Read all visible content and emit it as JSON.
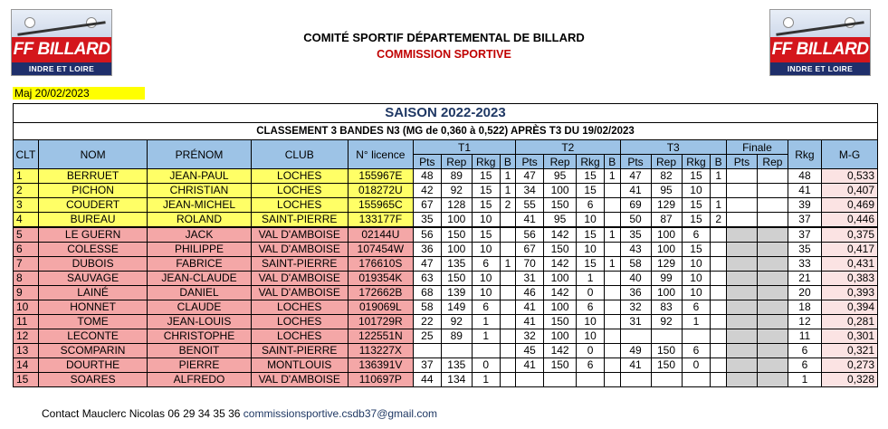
{
  "logo": {
    "brand": "FF BILLARD",
    "sub": "INDRE ET LOIRE"
  },
  "header": {
    "org": "COMITÉ SPORTIF DÉPARTEMENTAL DE BILLARD",
    "commission": "COMMISSION SPORTIVE",
    "maj": "Maj 20/02/2023"
  },
  "saison": "SAISON 2022-2023",
  "classement": "CLASSEMENT 3 BANDES N3 (MG de 0,360 à 0,522) APRÈS T3 DU 19/02/2023",
  "columns": {
    "clt": "CLT",
    "nom": "NOM",
    "prenom": "PRÉNOM",
    "club": "CLUB",
    "licence": "N° licence",
    "t1": "T1",
    "t2": "T2",
    "t3": "T3",
    "finale": "Finale",
    "rkg": "Rkg",
    "mg": "M-G",
    "pts": "Pts",
    "rep": "Rep",
    "rkgsub": "Rkg",
    "b": "B"
  },
  "rows": [
    {
      "clt": "1",
      "nom": "BERRUET",
      "prenom": "JEAN-PAUL",
      "club": "LOCHES",
      "licence": "155967E",
      "t1": [
        "48",
        "89",
        "15",
        "1"
      ],
      "t2": [
        "47",
        "95",
        "15",
        "1"
      ],
      "t3": [
        "47",
        "82",
        "15",
        "1"
      ],
      "rkg": "48",
      "mg": "0,533"
    },
    {
      "clt": "2",
      "nom": "PICHON",
      "prenom": "CHRISTIAN",
      "club": "LOCHES",
      "licence": "018272U",
      "t1": [
        "42",
        "92",
        "15",
        "1"
      ],
      "t2": [
        "34",
        "100",
        "15",
        ""
      ],
      "t3": [
        "41",
        "95",
        "10",
        ""
      ],
      "rkg": "41",
      "mg": "0,407"
    },
    {
      "clt": "3",
      "nom": "COUDERT",
      "prenom": "JEAN-MICHEL",
      "club": "LOCHES",
      "licence": "155965C",
      "t1": [
        "67",
        "128",
        "15",
        "2"
      ],
      "t2": [
        "55",
        "150",
        "6",
        ""
      ],
      "t3": [
        "69",
        "129",
        "15",
        "1"
      ],
      "rkg": "39",
      "mg": "0,469"
    },
    {
      "clt": "4",
      "nom": "BUREAU",
      "prenom": "ROLAND",
      "club": "SAINT-PIERRE",
      "licence": "133177F",
      "t1": [
        "35",
        "100",
        "10",
        ""
      ],
      "t2": [
        "41",
        "95",
        "10",
        ""
      ],
      "t3": [
        "50",
        "87",
        "15",
        "2"
      ],
      "rkg": "37",
      "mg": "0,446"
    },
    {
      "clt": "5",
      "nom": "LE GUERN",
      "prenom": "JACK",
      "club": "VAL D'AMBOISE",
      "licence": "02144U",
      "t1": [
        "56",
        "150",
        "15",
        ""
      ],
      "t2": [
        "56",
        "142",
        "15",
        "1"
      ],
      "t3": [
        "35",
        "100",
        "6",
        ""
      ],
      "rkg": "37",
      "mg": "0,375"
    },
    {
      "clt": "6",
      "nom": "COLESSE",
      "prenom": "PHILIPPE",
      "club": "VAL D'AMBOISE",
      "licence": "107454W",
      "t1": [
        "36",
        "100",
        "10",
        ""
      ],
      "t2": [
        "67",
        "150",
        "10",
        ""
      ],
      "t3": [
        "43",
        "100",
        "15",
        ""
      ],
      "rkg": "35",
      "mg": "0,417"
    },
    {
      "clt": "7",
      "nom": "DUBOIS",
      "prenom": "FABRICE",
      "club": "SAINT-PIERRE",
      "licence": "176610S",
      "t1": [
        "47",
        "135",
        "6",
        "1"
      ],
      "t2": [
        "70",
        "142",
        "15",
        "1"
      ],
      "t3": [
        "58",
        "129",
        "10",
        ""
      ],
      "rkg": "33",
      "mg": "0,431"
    },
    {
      "clt": "8",
      "nom": "SAUVAGE",
      "prenom": "JEAN-CLAUDE",
      "club": "VAL D'AMBOISE",
      "licence": "019354K",
      "t1": [
        "63",
        "150",
        "10",
        ""
      ],
      "t2": [
        "31",
        "100",
        "1",
        ""
      ],
      "t3": [
        "40",
        "99",
        "10",
        ""
      ],
      "rkg": "21",
      "mg": "0,383"
    },
    {
      "clt": "9",
      "nom": "LAINÉ",
      "prenom": "DANIEL",
      "club": "VAL D'AMBOISE",
      "licence": "172662B",
      "t1": [
        "68",
        "139",
        "10",
        ""
      ],
      "t2": [
        "46",
        "142",
        "0",
        ""
      ],
      "t3": [
        "36",
        "100",
        "10",
        ""
      ],
      "rkg": "20",
      "mg": "0,393"
    },
    {
      "clt": "10",
      "nom": "HONNET",
      "prenom": "CLAUDE",
      "club": "LOCHES",
      "licence": "019069L",
      "t1": [
        "58",
        "149",
        "6",
        ""
      ],
      "t2": [
        "41",
        "100",
        "6",
        ""
      ],
      "t3": [
        "32",
        "83",
        "6",
        ""
      ],
      "rkg": "18",
      "mg": "0,394"
    },
    {
      "clt": "11",
      "nom": "TOME",
      "prenom": "JEAN-LOUIS",
      "club": "LOCHES",
      "licence": "101729R",
      "t1": [
        "22",
        "92",
        "1",
        ""
      ],
      "t2": [
        "41",
        "150",
        "10",
        ""
      ],
      "t3": [
        "31",
        "92",
        "1",
        ""
      ],
      "rkg": "12",
      "mg": "0,281"
    },
    {
      "clt": "12",
      "nom": "LECONTE",
      "prenom": "CHRISTOPHE",
      "club": "LOCHES",
      "licence": "122551N",
      "t1": [
        "25",
        "89",
        "1",
        ""
      ],
      "t2": [
        "32",
        "100",
        "10",
        ""
      ],
      "t3": [
        "",
        "",
        "",
        ""
      ],
      "rkg": "11",
      "mg": "0,301"
    },
    {
      "clt": "13",
      "nom": "SCOMPARIN",
      "prenom": "BENOIT",
      "club": "SAINT-PIERRE",
      "licence": "113227X",
      "t1": [
        "",
        "",
        "",
        ""
      ],
      "t2": [
        "45",
        "142",
        "0",
        ""
      ],
      "t3": [
        "49",
        "150",
        "6",
        ""
      ],
      "rkg": "6",
      "mg": "0,321"
    },
    {
      "clt": "14",
      "nom": "DOURTHE",
      "prenom": "PIERRE",
      "club": "MONTLOUIS",
      "licence": "136391V",
      "t1": [
        "37",
        "135",
        "0",
        ""
      ],
      "t2": [
        "41",
        "150",
        "6",
        ""
      ],
      "t3": [
        "41",
        "150",
        "0",
        ""
      ],
      "rkg": "6",
      "mg": "0,273"
    },
    {
      "clt": "15",
      "nom": "SOARES",
      "prenom": "ALFREDO",
      "club": "VAL D'AMBOISE",
      "licence": "110697P",
      "t1": [
        "44",
        "134",
        "1",
        ""
      ],
      "t2": [
        "",
        "",
        "",
        ""
      ],
      "t3": [
        "",
        "",
        "",
        ""
      ],
      "rkg": "1",
      "mg": "0,328"
    }
  ],
  "contact": {
    "text": "Contact Mauclerc Nicolas 06 29 34 35 36 ",
    "email": "commissionsportive.csdb37@gmail.com"
  }
}
